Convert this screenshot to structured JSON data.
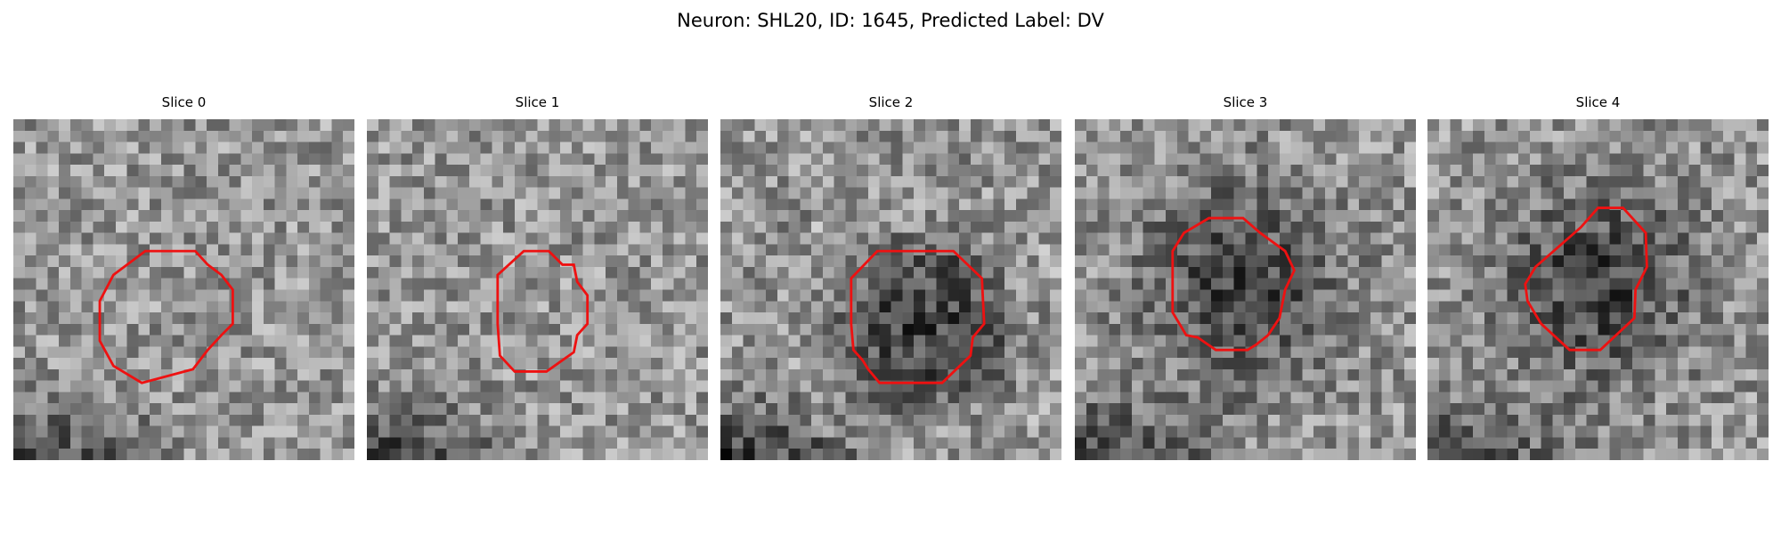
{
  "figure": {
    "title": "Neuron: SHL20, ID: 1645, Predicted Label: DV",
    "panels": [
      {
        "title": "Slice 0"
      },
      {
        "title": "Slice 1"
      },
      {
        "title": "Slice 2"
      },
      {
        "title": "Slice 3"
      },
      {
        "title": "Slice 4"
      }
    ]
  }
}
